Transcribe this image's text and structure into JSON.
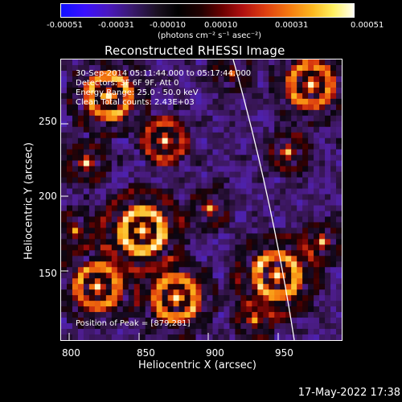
{
  "colorbar": {
    "ticks": [
      "-0.00051",
      "-0.00031",
      "-0.00010",
      "0.00010",
      "0.00031",
      "0.00051"
    ],
    "unit": "(photons cm⁻² s⁻¹ asec⁻²)"
  },
  "plot": {
    "title": "Reconstructed RHESSI Image",
    "info_lines": [
      "30-Sep-2014 05:11:44.000 to 05:17:44.000",
      "Detectors: 3F 6F 9F, Att 0",
      "Energy Range: 25.0 - 50.0 keV",
      "Clean    Total counts: 2.43E+03"
    ],
    "peak_text": "Position of Peak = [879,281]",
    "xlabel": "Heliocentric X (arcsec)",
    "ylabel": "Heliocentric Y (arcsec)",
    "x_ticks": [
      "800",
      "850",
      "900",
      "950"
    ],
    "y_ticks": [
      "150",
      "200",
      "250"
    ],
    "xlim": [
      795,
      985
    ],
    "ylim": [
      95,
      285
    ]
  },
  "timestamp": "17-May-2022 17:38"
}
